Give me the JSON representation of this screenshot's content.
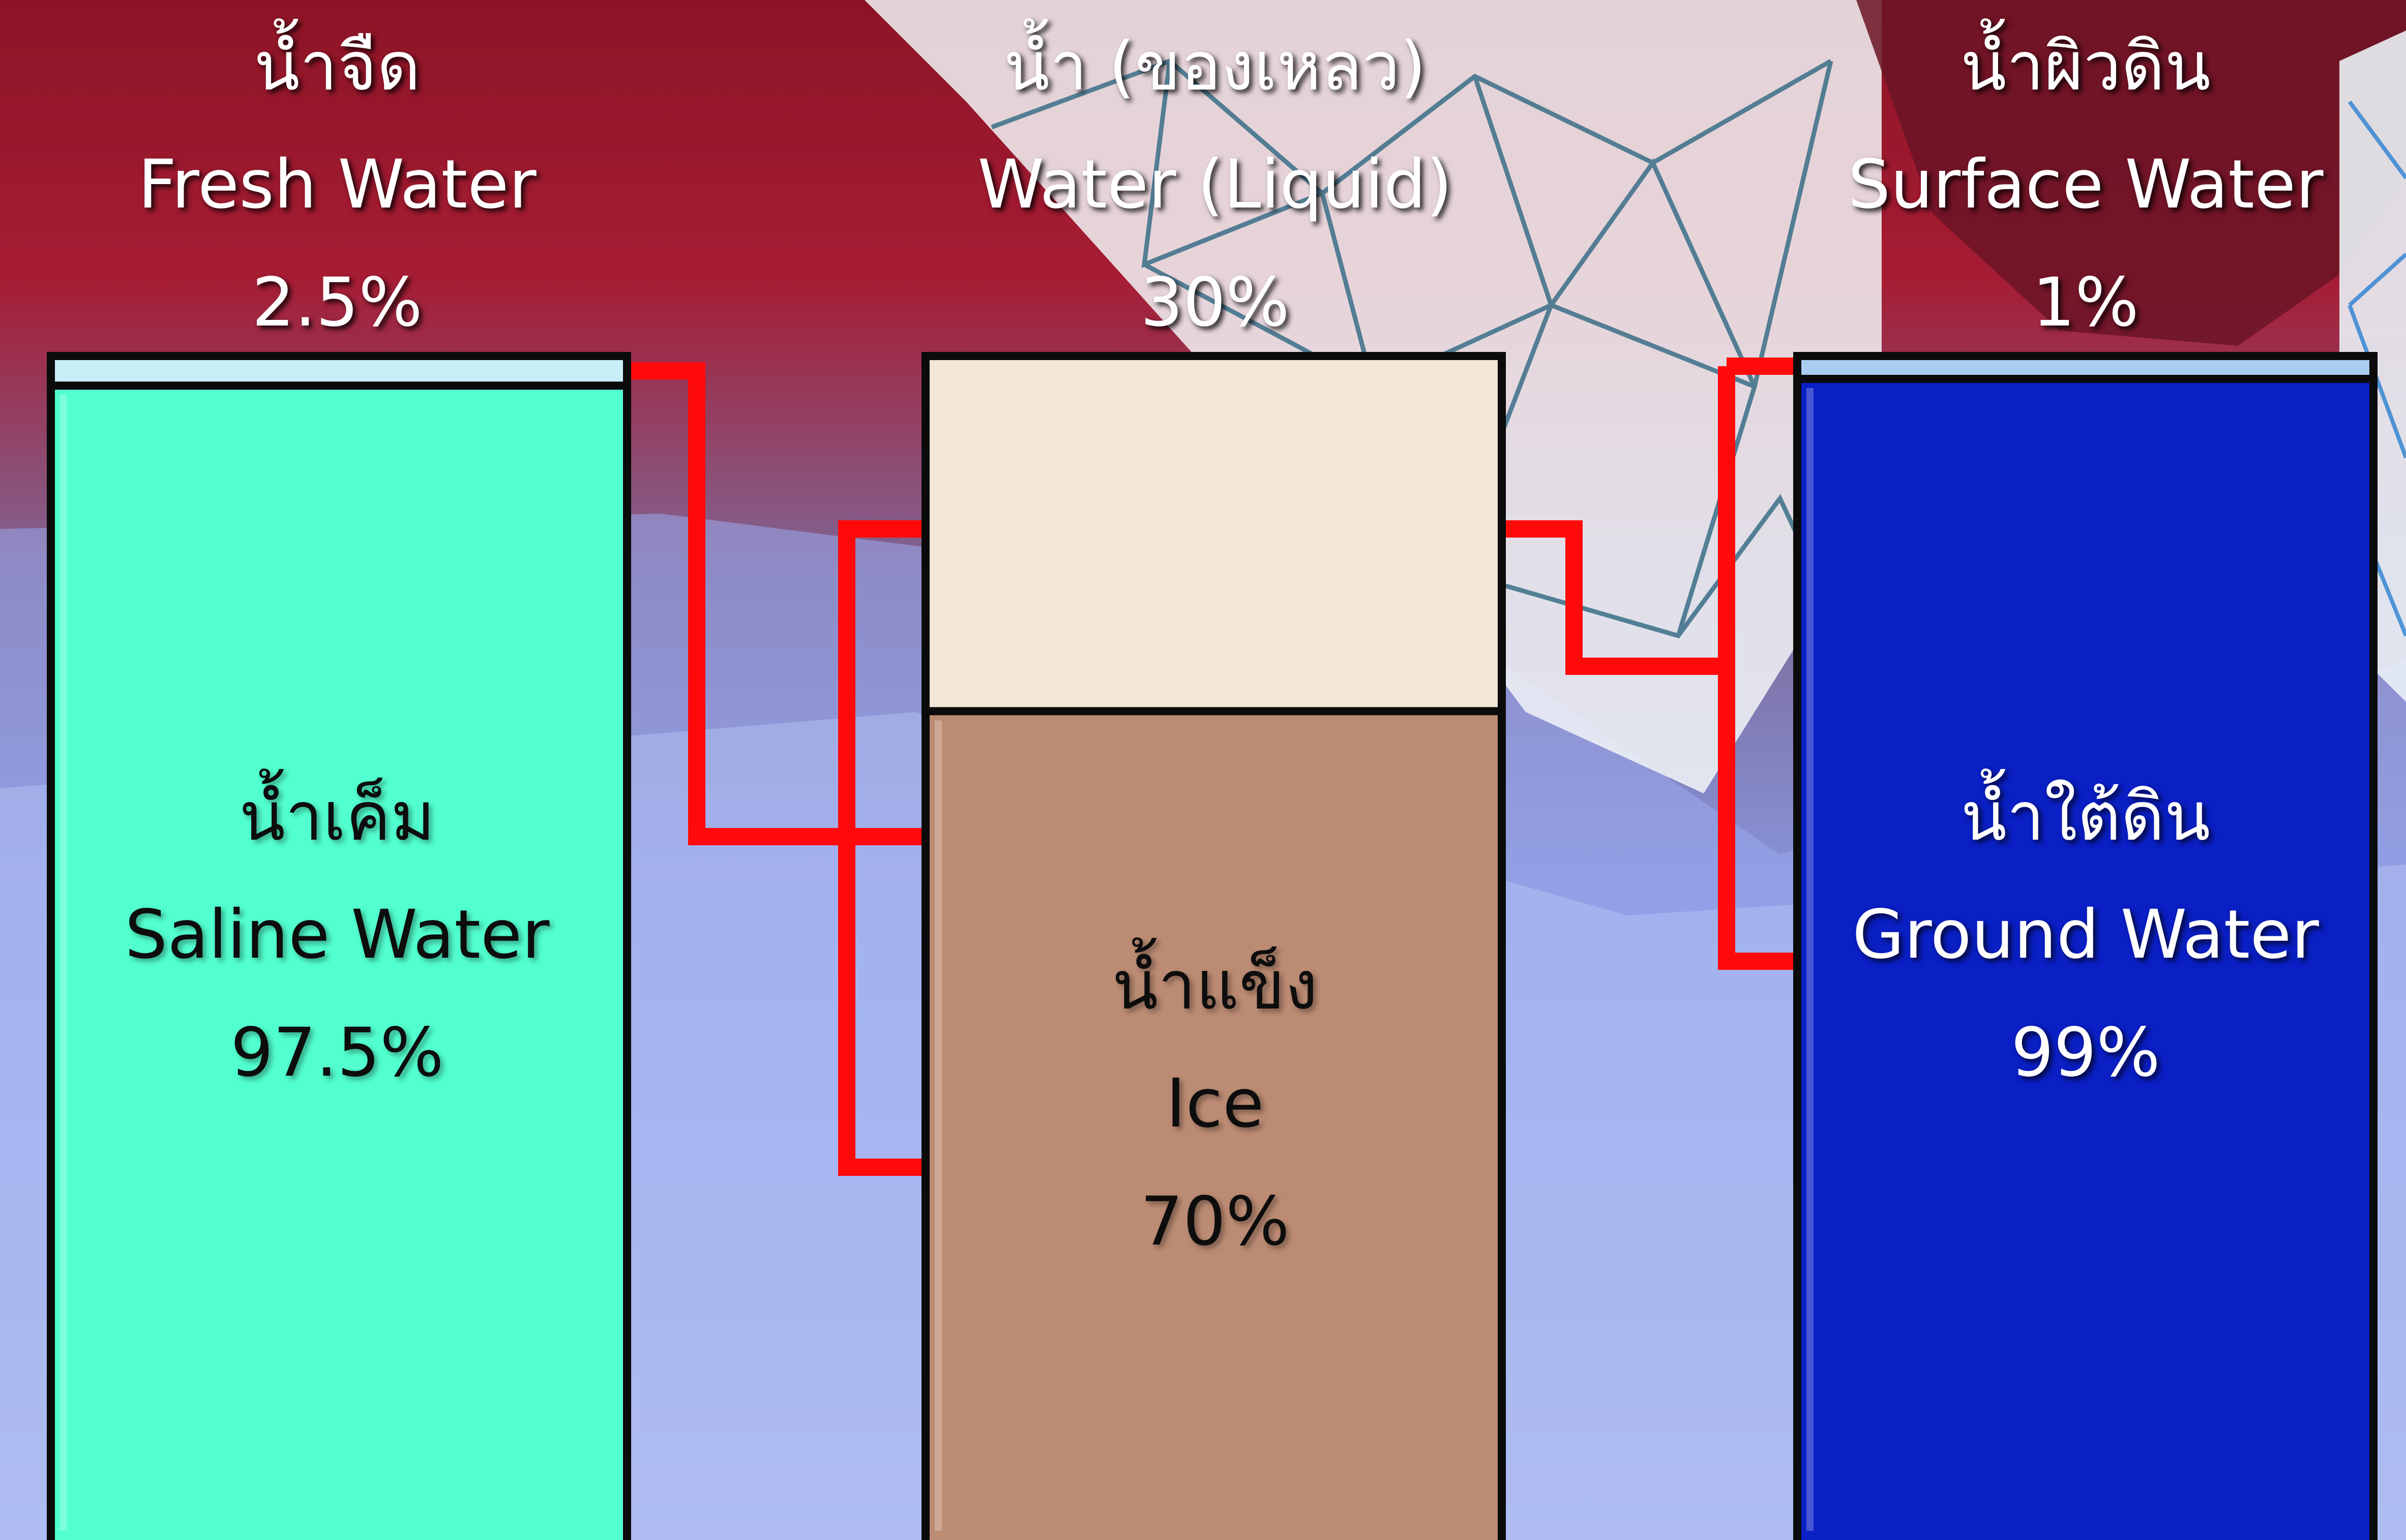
{
  "chart_data": {
    "type": "bar",
    "stacked": true,
    "bars": [
      {
        "top": {
          "thai": "น้ำจืด",
          "english": "Fresh Water",
          "value": 2.5,
          "display": "2.5%",
          "color": "#c9eef7"
        },
        "bottom": {
          "thai": "น้ำเค็ม",
          "english": "Saline Water",
          "value": 97.5,
          "display": "97.5%",
          "color": "#52ffcf"
        }
      },
      {
        "top": {
          "thai": "น้ำ (ของเหลว)",
          "english": "Water (Liquid)",
          "value": 30,
          "display": "30%",
          "color": "#f3e6d6"
        },
        "bottom": {
          "thai": "น้ำแข็ง",
          "english": "Ice",
          "value": 70,
          "display": "70%",
          "color": "#bc8b73"
        }
      },
      {
        "top": {
          "thai": "น้ำผิวดิน",
          "english": "Surface Water",
          "value": 1,
          "display": "1%",
          "color": "#a9ccf0"
        },
        "bottom": {
          "thai": "น้ำใต้ดิน",
          "english": "Ground Water",
          "value": 99,
          "display": "99%",
          "color": "#0a1fc4"
        }
      }
    ],
    "connector_color": "#ff0a0a",
    "grid": false
  }
}
